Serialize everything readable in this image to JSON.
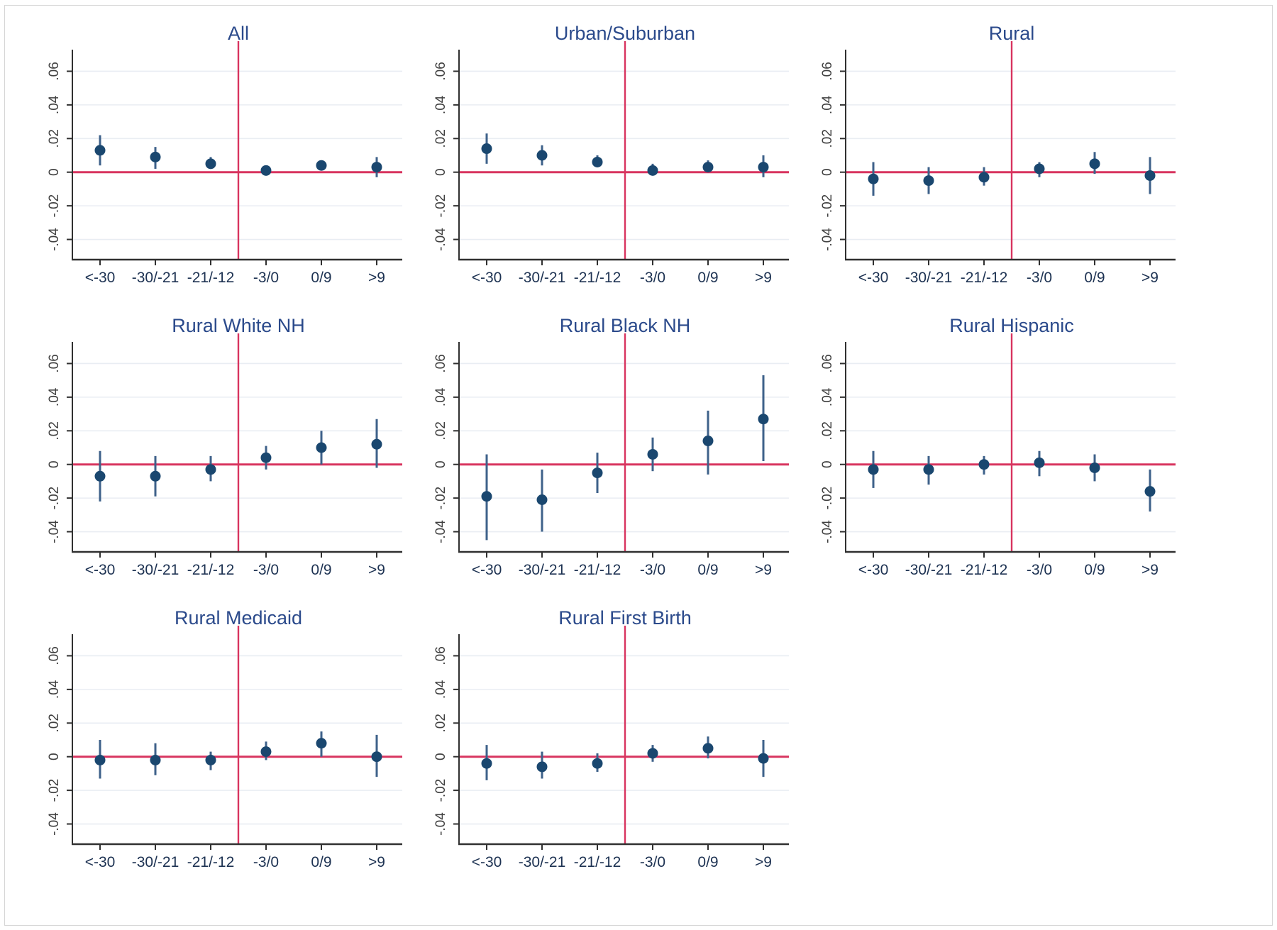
{
  "figure": {
    "background": "#ffffff",
    "frame_border_color": "#d6d6d6"
  },
  "chart_data": {
    "type": "scatter",
    "subtype": "coefficient-plot-with-95ci",
    "categories": [
      "<-30",
      "-30/-21",
      "-21/-12",
      "-3/0",
      "0/9",
      ">9"
    ],
    "ytick_labels": [
      ".06",
      ".04",
      ".02",
      "0",
      "-.02",
      "-.04"
    ],
    "yticks": [
      0.06,
      0.04,
      0.02,
      0,
      -0.02,
      -0.04
    ],
    "ylim": [
      -0.052,
      0.072
    ],
    "grid": true,
    "reference_lines": {
      "horizontal_y": 0,
      "vertical_between": [
        "-21/-12",
        "-3/0"
      ]
    },
    "colors": {
      "point": "#1a476f",
      "ci_line": "#3e618a",
      "ref_line": "#d8345f",
      "grid_line": "#e9edf3",
      "axis_line": "#303030",
      "title_text": "#2b4a8b",
      "xtick_text": "#1d3252",
      "ytick_text": "#404040"
    },
    "panels": [
      {
        "title": "All",
        "row": 0,
        "col": 0,
        "points": [
          {
            "x": "<-30",
            "est": 0.013,
            "lo": 0.004,
            "hi": 0.022
          },
          {
            "x": "-30/-21",
            "est": 0.009,
            "lo": 0.002,
            "hi": 0.015
          },
          {
            "x": "-21/-12",
            "est": 0.005,
            "lo": 0.002,
            "hi": 0.009
          },
          {
            "x": "-3/0",
            "est": 0.001,
            "lo": -0.002,
            "hi": 0.004
          },
          {
            "x": "0/9",
            "est": 0.004,
            "lo": 0.001,
            "hi": 0.006
          },
          {
            "x": ">9",
            "est": 0.003,
            "lo": -0.003,
            "hi": 0.009
          }
        ]
      },
      {
        "title": "Urban/Suburban",
        "row": 0,
        "col": 1,
        "points": [
          {
            "x": "<-30",
            "est": 0.014,
            "lo": 0.005,
            "hi": 0.023
          },
          {
            "x": "-30/-21",
            "est": 0.01,
            "lo": 0.004,
            "hi": 0.016
          },
          {
            "x": "-21/-12",
            "est": 0.006,
            "lo": 0.003,
            "hi": 0.01
          },
          {
            "x": "-3/0",
            "est": 0.001,
            "lo": -0.002,
            "hi": 0.005
          },
          {
            "x": "0/9",
            "est": 0.003,
            "lo": 0.0,
            "hi": 0.007
          },
          {
            "x": ">9",
            "est": 0.003,
            "lo": -0.003,
            "hi": 0.01
          }
        ]
      },
      {
        "title": "Rural",
        "row": 0,
        "col": 2,
        "points": [
          {
            "x": "<-30",
            "est": -0.004,
            "lo": -0.014,
            "hi": 0.006
          },
          {
            "x": "-30/-21",
            "est": -0.005,
            "lo": -0.013,
            "hi": 0.003
          },
          {
            "x": "-21/-12",
            "est": -0.003,
            "lo": -0.008,
            "hi": 0.003
          },
          {
            "x": "-3/0",
            "est": 0.002,
            "lo": -0.003,
            "hi": 0.006
          },
          {
            "x": "0/9",
            "est": 0.005,
            "lo": -0.001,
            "hi": 0.012
          },
          {
            "x": ">9",
            "est": -0.002,
            "lo": -0.013,
            "hi": 0.009
          }
        ]
      },
      {
        "title": "Rural White NH",
        "row": 1,
        "col": 0,
        "points": [
          {
            "x": "<-30",
            "est": -0.007,
            "lo": -0.022,
            "hi": 0.008
          },
          {
            "x": "-30/-21",
            "est": -0.007,
            "lo": -0.019,
            "hi": 0.005
          },
          {
            "x": "-21/-12",
            "est": -0.003,
            "lo": -0.01,
            "hi": 0.005
          },
          {
            "x": "-3/0",
            "est": 0.004,
            "lo": -0.003,
            "hi": 0.011
          },
          {
            "x": "0/9",
            "est": 0.01,
            "lo": 0.0,
            "hi": 0.02
          },
          {
            "x": ">9",
            "est": 0.012,
            "lo": -0.002,
            "hi": 0.027
          }
        ]
      },
      {
        "title": "Rural Black NH",
        "row": 1,
        "col": 1,
        "points": [
          {
            "x": "<-30",
            "est": -0.019,
            "lo": -0.045,
            "hi": 0.006
          },
          {
            "x": "-30/-21",
            "est": -0.021,
            "lo": -0.04,
            "hi": -0.003
          },
          {
            "x": "-21/-12",
            "est": -0.005,
            "lo": -0.017,
            "hi": 0.007
          },
          {
            "x": "-3/0",
            "est": 0.006,
            "lo": -0.004,
            "hi": 0.016
          },
          {
            "x": "0/9",
            "est": 0.014,
            "lo": -0.006,
            "hi": 0.032
          },
          {
            "x": ">9",
            "est": 0.027,
            "lo": 0.002,
            "hi": 0.053
          }
        ]
      },
      {
        "title": "Rural Hispanic",
        "row": 1,
        "col": 2,
        "points": [
          {
            "x": "<-30",
            "est": -0.003,
            "lo": -0.014,
            "hi": 0.008
          },
          {
            "x": "-30/-21",
            "est": -0.003,
            "lo": -0.012,
            "hi": 0.005
          },
          {
            "x": "-21/-12",
            "est": 0.0,
            "lo": -0.006,
            "hi": 0.005
          },
          {
            "x": "-3/0",
            "est": 0.001,
            "lo": -0.007,
            "hi": 0.008
          },
          {
            "x": "0/9",
            "est": -0.002,
            "lo": -0.01,
            "hi": 0.006
          },
          {
            "x": ">9",
            "est": -0.016,
            "lo": -0.028,
            "hi": -0.003
          }
        ]
      },
      {
        "title": "Rural Medicaid",
        "row": 2,
        "col": 0,
        "points": [
          {
            "x": "<-30",
            "est": -0.002,
            "lo": -0.013,
            "hi": 0.01
          },
          {
            "x": "-30/-21",
            "est": -0.002,
            "lo": -0.011,
            "hi": 0.008
          },
          {
            "x": "-21/-12",
            "est": -0.002,
            "lo": -0.008,
            "hi": 0.003
          },
          {
            "x": "-3/0",
            "est": 0.003,
            "lo": -0.002,
            "hi": 0.009
          },
          {
            "x": "0/9",
            "est": 0.008,
            "lo": 0.0,
            "hi": 0.015
          },
          {
            "x": ">9",
            "est": 0.0,
            "lo": -0.012,
            "hi": 0.013
          }
        ]
      },
      {
        "title": "Rural First Birth",
        "row": 2,
        "col": 1,
        "points": [
          {
            "x": "<-30",
            "est": -0.004,
            "lo": -0.014,
            "hi": 0.007
          },
          {
            "x": "-30/-21",
            "est": -0.006,
            "lo": -0.013,
            "hi": 0.003
          },
          {
            "x": "-21/-12",
            "est": -0.004,
            "lo": -0.009,
            "hi": 0.002
          },
          {
            "x": "-3/0",
            "est": 0.002,
            "lo": -0.003,
            "hi": 0.007
          },
          {
            "x": "0/9",
            "est": 0.005,
            "lo": -0.001,
            "hi": 0.012
          },
          {
            "x": ">9",
            "est": -0.001,
            "lo": -0.012,
            "hi": 0.01
          }
        ]
      }
    ]
  }
}
